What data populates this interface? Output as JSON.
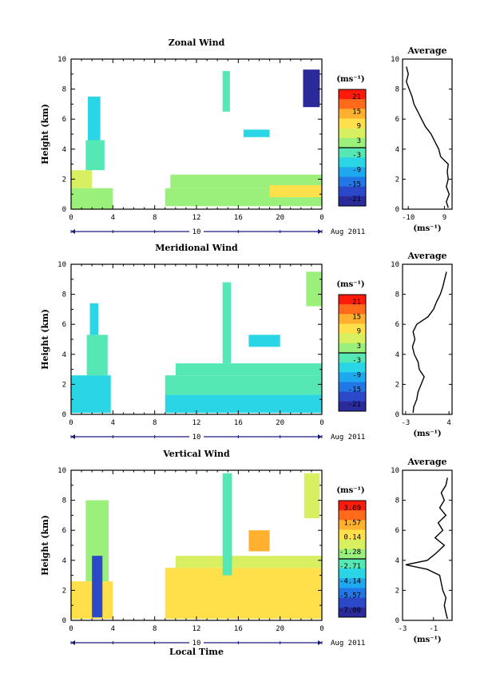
{
  "chart_data": [
    {
      "type": "heatmap",
      "title": "Zonal Wind",
      "ylabel": "Height (km)",
      "xlabel": "",
      "x_ticks": [
        "0",
        "4",
        "8",
        "12",
        "16",
        "20",
        "0"
      ],
      "y_ticks": [
        "0",
        "2",
        "4",
        "6",
        "8",
        "10"
      ],
      "xlim": [
        0,
        24
      ],
      "ylim": [
        0,
        10
      ],
      "date_label": "Aug 2011",
      "day_label": "10",
      "colorbar": {
        "unit": "(ms⁻¹)",
        "ticks": [
          "21",
          "15",
          "9",
          "3",
          "-3",
          "-9",
          "-15",
          "-21"
        ],
        "range": [
          -24,
          24
        ]
      },
      "cells": [
        {
          "x0": 0,
          "x1": 4,
          "y0": 0,
          "y1": 1.4,
          "v": 3
        },
        {
          "x0": 0,
          "x1": 2,
          "y0": 1.4,
          "y1": 2.6,
          "v": 8
        },
        {
          "x0": 1.4,
          "x1": 3.2,
          "y0": 2.6,
          "y1": 4.6,
          "v": -1
        },
        {
          "x0": 1.6,
          "x1": 2.8,
          "y0": 4.6,
          "y1": 7.5,
          "v": -7
        },
        {
          "x0": 9,
          "x1": 24,
          "y0": 0.2,
          "y1": 1.4,
          "v": 2
        },
        {
          "x0": 9.5,
          "x1": 24,
          "y0": 1.4,
          "y1": 2.3,
          "v": 3
        },
        {
          "x0": 19,
          "x1": 24,
          "y0": 0.8,
          "y1": 1.6,
          "v": 10
        },
        {
          "x0": 14.5,
          "x1": 15.2,
          "y0": 6.5,
          "y1": 9.2,
          "v": -3
        },
        {
          "x0": 16.5,
          "x1": 19,
          "y0": 4.8,
          "y1": 5.3,
          "v": -4
        },
        {
          "x0": 22.2,
          "x1": 23.8,
          "y0": 6.8,
          "y1": 9.3,
          "v": -20
        }
      ],
      "average_panel": {
        "title": "Average",
        "unit": "(ms⁻¹)",
        "x_ticks": [
          "-10",
          "9"
        ],
        "x_tick_values": [
          -10,
          9
        ],
        "xlim": [
          -13,
          13
        ],
        "y_ticks": [
          "0",
          "2",
          "4",
          "6",
          "8",
          "10"
        ],
        "profile": {
          "height": [
            0.1,
            0.5,
            1.0,
            1.5,
            2.0,
            2.5,
            3.0,
            3.5,
            4.0,
            4.5,
            5.0,
            5.5,
            6.0,
            6.5,
            7.0,
            7.5,
            8.0,
            8.5,
            9.0,
            9.5
          ],
          "speed": [
            11,
            10,
            11.5,
            10,
            11,
            10.5,
            11,
            7,
            6,
            4,
            2,
            -1,
            -3,
            -5,
            -7,
            -8,
            -9.5,
            -11,
            -10,
            -11
          ]
        }
      }
    },
    {
      "type": "heatmap",
      "title": "Meridional Wind",
      "ylabel": "Height (km)",
      "xlabel": "",
      "x_ticks": [
        "0",
        "4",
        "8",
        "12",
        "16",
        "20",
        "0"
      ],
      "y_ticks": [
        "0",
        "2",
        "4",
        "6",
        "8",
        "10"
      ],
      "xlim": [
        0,
        24
      ],
      "ylim": [
        0,
        10
      ],
      "date_label": "Aug 2011",
      "day_label": "10",
      "colorbar": {
        "unit": "(ms⁻¹)",
        "ticks": [
          "21",
          "15",
          "9",
          "3",
          "-3",
          "-9",
          "-15",
          "-21"
        ],
        "range": [
          -24,
          24
        ]
      },
      "cells": [
        {
          "x0": 0,
          "x1": 3.8,
          "y0": 0.1,
          "y1": 2.6,
          "v": -4
        },
        {
          "x0": 1.5,
          "x1": 3.5,
          "y0": 2.6,
          "y1": 5.3,
          "v": -2
        },
        {
          "x0": 1.8,
          "x1": 2.6,
          "y0": 5.3,
          "y1": 7.4,
          "v": -6
        },
        {
          "x0": 9,
          "x1": 24,
          "y0": 0.1,
          "y1": 1.3,
          "v": -5
        },
        {
          "x0": 9,
          "x1": 24,
          "y0": 1.3,
          "y1": 2.6,
          "v": -3
        },
        {
          "x0": 10,
          "x1": 24,
          "y0": 2.6,
          "y1": 3.4,
          "v": 0
        },
        {
          "x0": 14.5,
          "x1": 15.3,
          "y0": 3.4,
          "y1": 8.8,
          "v": -2
        },
        {
          "x0": 17,
          "x1": 20,
          "y0": 4.5,
          "y1": 5.3,
          "v": -5
        },
        {
          "x0": 22.5,
          "x1": 24,
          "y0": 7.2,
          "y1": 9.5,
          "v": 3
        }
      ],
      "average_panel": {
        "title": "Average",
        "unit": "(ms⁻¹)",
        "x_ticks": [
          "-3",
          "4"
        ],
        "x_tick_values": [
          -3,
          4
        ],
        "xlim": [
          -3.5,
          4.5
        ],
        "y_ticks": [
          "0",
          "2",
          "4",
          "6",
          "8",
          "10"
        ],
        "profile": {
          "height": [
            0.1,
            0.5,
            1.0,
            1.5,
            2.0,
            2.5,
            3.0,
            3.5,
            4.0,
            4.5,
            5.0,
            5.5,
            6.0,
            6.5,
            7.0,
            7.5,
            8.0,
            8.5,
            9.0,
            9.5
          ],
          "speed": [
            -1.8,
            -1.7,
            -1.2,
            -1.0,
            -0.5,
            0.0,
            -0.8,
            -1.0,
            -1.6,
            -1.9,
            -1.5,
            -1.8,
            -1.2,
            0.6,
            1.5,
            2.0,
            2.6,
            3.0,
            3.3,
            3.6
          ]
        }
      }
    },
    {
      "type": "heatmap",
      "title": "Vertical Wind",
      "ylabel": "Height (km)",
      "xlabel": "Local Time",
      "x_ticks": [
        "0",
        "4",
        "8",
        "12",
        "16",
        "20",
        "0"
      ],
      "y_ticks": [
        "0",
        "2",
        "4",
        "6",
        "8",
        "10"
      ],
      "xlim": [
        0,
        24
      ],
      "ylim": [
        0,
        10
      ],
      "date_label": "Aug 2011",
      "day_label": "10",
      "colorbar": {
        "unit": "(ms⁻¹)",
        "ticks": [
          "3.09",
          "1.57",
          "0.14",
          "-1.28",
          "-2.71",
          "-4.14",
          "-5.57",
          "-7.00"
        ],
        "range": [
          -7.7,
          3.8
        ]
      },
      "cells": [
        {
          "x0": 0,
          "x1": 4,
          "y0": 0.1,
          "y1": 2.6,
          "v": 0.2
        },
        {
          "x0": 1.4,
          "x1": 3.6,
          "y0": 2.6,
          "y1": 8.0,
          "v": -1.0
        },
        {
          "x0": 2.0,
          "x1": 3.0,
          "y0": 0.2,
          "y1": 4.3,
          "v": -6.2
        },
        {
          "x0": 9,
          "x1": 24,
          "y0": 0.1,
          "y1": 3.5,
          "v": 0.4
        },
        {
          "x0": 10,
          "x1": 24,
          "y0": 3.5,
          "y1": 4.3,
          "v": -0.2
        },
        {
          "x0": 14.5,
          "x1": 15.4,
          "y0": 3.0,
          "y1": 9.8,
          "v": -2.2
        },
        {
          "x0": 17,
          "x1": 19,
          "y0": 4.6,
          "y1": 6.0,
          "v": 1.2
        },
        {
          "x0": 22.3,
          "x1": 23.8,
          "y0": 6.8,
          "y1": 9.8,
          "v": -0.8
        }
      ],
      "average_panel": {
        "title": "Average",
        "unit": "(ms⁻¹)",
        "x_ticks": [
          "-3",
          "-1"
        ],
        "x_tick_values": [
          -3,
          -1
        ],
        "xlim": [
          -3,
          0.2
        ],
        "y_ticks": [
          "0",
          "2",
          "4",
          "6",
          "8",
          "10"
        ],
        "profile": {
          "height": [
            0.1,
            0.5,
            1.0,
            1.5,
            2.0,
            2.5,
            3.0,
            3.4,
            3.7,
            4.0,
            4.5,
            5.0,
            5.5,
            6.0,
            6.5,
            7.0,
            7.5,
            8.0,
            8.5,
            9.0,
            9.5
          ],
          "speed": [
            -0.1,
            -0.2,
            -0.3,
            -0.2,
            -0.4,
            -0.5,
            -0.6,
            -1.4,
            -2.8,
            -1.4,
            -0.8,
            -0.3,
            -0.9,
            -0.4,
            -0.7,
            -0.2,
            -0.6,
            -0.3,
            -0.5,
            -0.2,
            -0.1
          ]
        }
      }
    }
  ]
}
